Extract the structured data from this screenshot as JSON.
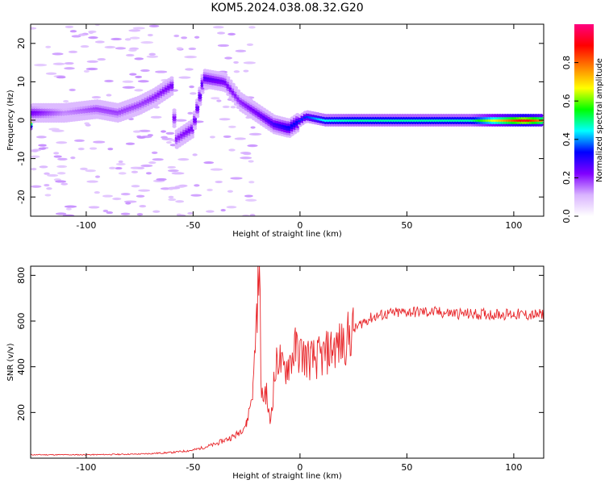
{
  "title": "KOM5.2024.038.08.32.G20",
  "chart_data": [
    {
      "type": "heatmap",
      "xlabel": "Height of straight line (km)",
      "ylabel": "Frequency (Hz)",
      "xlim": [
        -126,
        114
      ],
      "ylim": [
        -25,
        25
      ],
      "xticks": [
        -100,
        -50,
        0,
        50,
        100
      ],
      "yticks": [
        -20,
        -10,
        0,
        10,
        20
      ],
      "colorbar": {
        "label": "Normalized spectral amplitude",
        "range": [
          0,
          1
        ],
        "ticks": [
          0.0,
          0.2,
          0.4,
          0.6,
          0.8
        ],
        "colors": [
          "#ffffff",
          "#d9b3ff",
          "#8000ff",
          "#0000ff",
          "#00ffff",
          "#00ff00",
          "#ffff00",
          "#ff8000",
          "#ff0000",
          "#ff0080"
        ]
      },
      "ridge": [
        {
          "x": -125,
          "y": 2,
          "amplitude": 0.25
        },
        {
          "x": -110,
          "y": 2,
          "amplitude": 0.15
        },
        {
          "x": -95,
          "y": 3,
          "amplitude": 0.2
        },
        {
          "x": -85,
          "y": 2,
          "amplitude": 0.2
        },
        {
          "x": -75,
          "y": 4,
          "amplitude": 0.2
        },
        {
          "x": -68,
          "y": 6,
          "amplitude": 0.22
        },
        {
          "x": -60,
          "y": 9,
          "amplitude": 0.25
        },
        {
          "x": -58,
          "y": -5,
          "amplitude": 0.22
        },
        {
          "x": -50,
          "y": -2,
          "amplitude": 0.25
        },
        {
          "x": -45,
          "y": 11,
          "amplitude": 0.28
        },
        {
          "x": -35,
          "y": 10,
          "amplitude": 0.25
        },
        {
          "x": -28,
          "y": 5,
          "amplitude": 0.22
        },
        {
          "x": -20,
          "y": 2,
          "amplitude": 0.25
        },
        {
          "x": -12,
          "y": -1,
          "amplitude": 0.3
        },
        {
          "x": -5,
          "y": -2,
          "amplitude": 0.35
        },
        {
          "x": 3,
          "y": 1,
          "amplitude": 0.35
        },
        {
          "x": 12,
          "y": 0,
          "amplitude": 0.45
        },
        {
          "x": 25,
          "y": 0,
          "amplitude": 0.48
        },
        {
          "x": 50,
          "y": 0,
          "amplitude": 0.48
        },
        {
          "x": 80,
          "y": 0,
          "amplitude": 0.48
        },
        {
          "x": 105,
          "y": 0,
          "amplitude": 0.92
        },
        {
          "x": 114,
          "y": 0,
          "amplitude": 0.75
        }
      ]
    },
    {
      "type": "line",
      "xlabel": "Height of straight line (km)",
      "ylabel": "SNR (v/v)",
      "xlim": [
        -126,
        114
      ],
      "ylim": [
        0,
        840
      ],
      "xticks": [
        -100,
        -50,
        0,
        50,
        100
      ],
      "yticks": [
        200,
        400,
        600,
        800
      ],
      "series": [
        {
          "color": "#e8262a",
          "x": [
            -126,
            -100,
            -75,
            -60,
            -50,
            -40,
            -30,
            -25,
            -22,
            -20,
            -19,
            -18,
            -16,
            -14,
            -12,
            -10,
            -8,
            -5,
            -2,
            0,
            5,
            10,
            15,
            20,
            25,
            30,
            35,
            40,
            50,
            60,
            70,
            80,
            90,
            100,
            110,
            114
          ],
          "values": [
            15,
            15,
            18,
            25,
            35,
            60,
            100,
            150,
            300,
            700,
            830,
            250,
            300,
            150,
            350,
            450,
            380,
            420,
            480,
            460,
            430,
            440,
            480,
            500,
            560,
            600,
            620,
            630,
            640,
            640,
            635,
            630,
            630,
            630,
            625,
            630
          ]
        }
      ]
    }
  ]
}
